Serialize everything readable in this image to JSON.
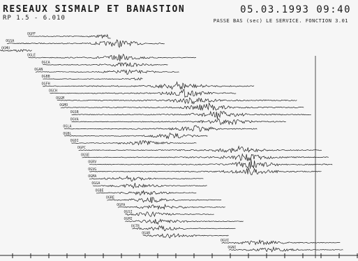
{
  "header": {
    "title": "RESEAUX SISMALP ET BANASTION",
    "subtitle": "RP 1.5 - 6.010",
    "datetime": "05.03.1993 09:40",
    "filter_note": "PASSE BAS (sec) LE SERVICE. FONCTION 3.01"
  },
  "traces": [
    {
      "label": "OGPF",
      "start": 0.08,
      "end": 0.31,
      "burst": 0.32,
      "amp": 0.7
    },
    {
      "label": "OGSA",
      "start": 0.02,
      "end": 0.46,
      "burst": 0.33,
      "amp": 0.9
    },
    {
      "label": "OGMU",
      "start": 0.0,
      "end": 0.09,
      "burst": 0.05,
      "amp": 0.3
    },
    {
      "label": "OGLE",
      "start": 0.08,
      "end": 0.55,
      "burst": 0.34,
      "amp": 0.8
    },
    {
      "label": "OGCA",
      "start": 0.12,
      "end": 0.47,
      "burst": 0.35,
      "amp": 0.6
    },
    {
      "label": "OGAN",
      "start": 0.1,
      "end": 0.5,
      "burst": 0.36,
      "amp": 0.6
    },
    {
      "label": "OGBB",
      "start": 0.12,
      "end": 0.4,
      "burst": 0.42,
      "amp": 0.5
    },
    {
      "label": "OGFH",
      "start": 0.12,
      "end": 0.71,
      "burst": 0.5,
      "amp": 1.0
    },
    {
      "label": "OGCH",
      "start": 0.14,
      "end": 0.66,
      "burst": 0.52,
      "amp": 0.9
    },
    {
      "label": "OGGM",
      "start": 0.16,
      "end": 0.83,
      "burst": 0.54,
      "amp": 1.0
    },
    {
      "label": "OGMO",
      "start": 0.17,
      "end": 0.85,
      "burst": 0.58,
      "amp": 1.0
    },
    {
      "label": "OGSB",
      "start": 0.2,
      "end": 0.87,
      "burst": 0.61,
      "amp": 1.0
    },
    {
      "label": "OGVA",
      "start": 0.2,
      "end": 0.8,
      "burst": 0.63,
      "amp": 0.9
    },
    {
      "label": "OGLA",
      "start": 0.18,
      "end": 0.72,
      "burst": 0.55,
      "amp": 0.8
    },
    {
      "label": "OGBL",
      "start": 0.18,
      "end": 0.58,
      "burst": 0.48,
      "amp": 0.7
    },
    {
      "label": "OGDI",
      "start": 0.2,
      "end": 0.55,
      "burst": 0.4,
      "amp": 0.6
    },
    {
      "label": "OGPC",
      "start": 0.22,
      "end": 0.9,
      "burst": 0.67,
      "amp": 0.9
    },
    {
      "label": "OGSE",
      "start": 0.23,
      "end": 0.92,
      "burst": 0.69,
      "amp": 1.0
    },
    {
      "label": "OGRV",
      "start": 0.25,
      "end": 0.93,
      "burst": 0.7,
      "amp": 1.0
    },
    {
      "label": "OGVG",
      "start": 0.25,
      "end": 0.9,
      "burst": 0.7,
      "amp": 0.9
    },
    {
      "label": "OGMA",
      "start": 0.25,
      "end": 0.57,
      "burst": 0.36,
      "amp": 0.6
    },
    {
      "label": "OGGA",
      "start": 0.26,
      "end": 0.58,
      "burst": 0.38,
      "amp": 0.6
    },
    {
      "label": "OGBE",
      "start": 0.27,
      "end": 0.55,
      "burst": 0.4,
      "amp": 0.6
    },
    {
      "label": "OGRE",
      "start": 0.3,
      "end": 0.62,
      "burst": 0.42,
      "amp": 0.7
    },
    {
      "label": "OGPA",
      "start": 0.33,
      "end": 0.63,
      "burst": 0.45,
      "amp": 0.7
    },
    {
      "label": "OGSI",
      "start": 0.35,
      "end": 0.6,
      "burst": 0.42,
      "amp": 0.6
    },
    {
      "label": "OGMI",
      "start": 0.35,
      "end": 0.68,
      "burst": 0.45,
      "amp": 0.7
    },
    {
      "label": "OGTR",
      "start": 0.37,
      "end": 0.66,
      "burst": 0.45,
      "amp": 0.6
    },
    {
      "label": "OGAR",
      "start": 0.4,
      "end": 0.64,
      "burst": 0.48,
      "amp": 0.6
    },
    {
      "label": "OGVI",
      "start": 0.62,
      "end": 0.95,
      "burst": 0.73,
      "amp": 0.7
    },
    {
      "label": "OGNI",
      "start": 0.64,
      "end": 0.96,
      "burst": 0.76,
      "amp": 0.6
    }
  ],
  "style": {
    "ink": "#1c1c1c",
    "paper": "#f6f6f6"
  }
}
